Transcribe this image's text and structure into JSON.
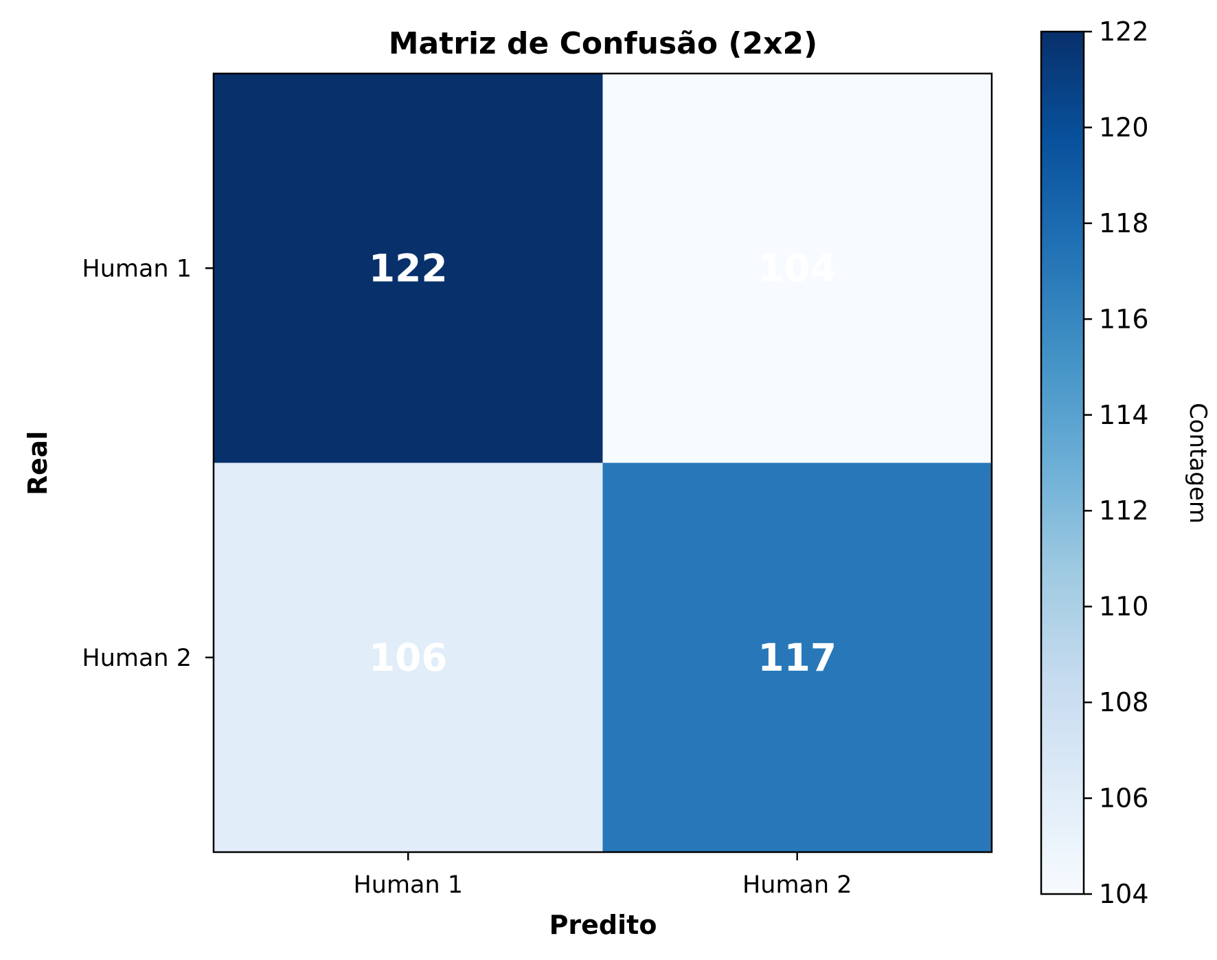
{
  "chart_data": {
    "type": "heatmap",
    "title": "Matriz de Confusão (2x2)",
    "xlabel": "Predito",
    "ylabel": "Real",
    "x_categories": [
      "Human 1",
      "Human 2"
    ],
    "y_categories": [
      "Human 1",
      "Human 2"
    ],
    "values": [
      [
        122,
        104
      ],
      [
        106,
        117
      ]
    ],
    "value_labels": [
      [
        "122",
        "104"
      ],
      [
        "106",
        "117"
      ]
    ],
    "colorscale": "Blues",
    "colorbar": {
      "label": "Contagem",
      "range": [
        104,
        122
      ],
      "ticks": [
        104,
        106,
        108,
        110,
        112,
        114,
        116,
        118,
        120,
        122
      ],
      "tick_labels": [
        "104",
        "106",
        "108",
        "110",
        "112",
        "114",
        "116",
        "118",
        "120",
        "122"
      ]
    },
    "annotation_color": "#ffffff"
  }
}
